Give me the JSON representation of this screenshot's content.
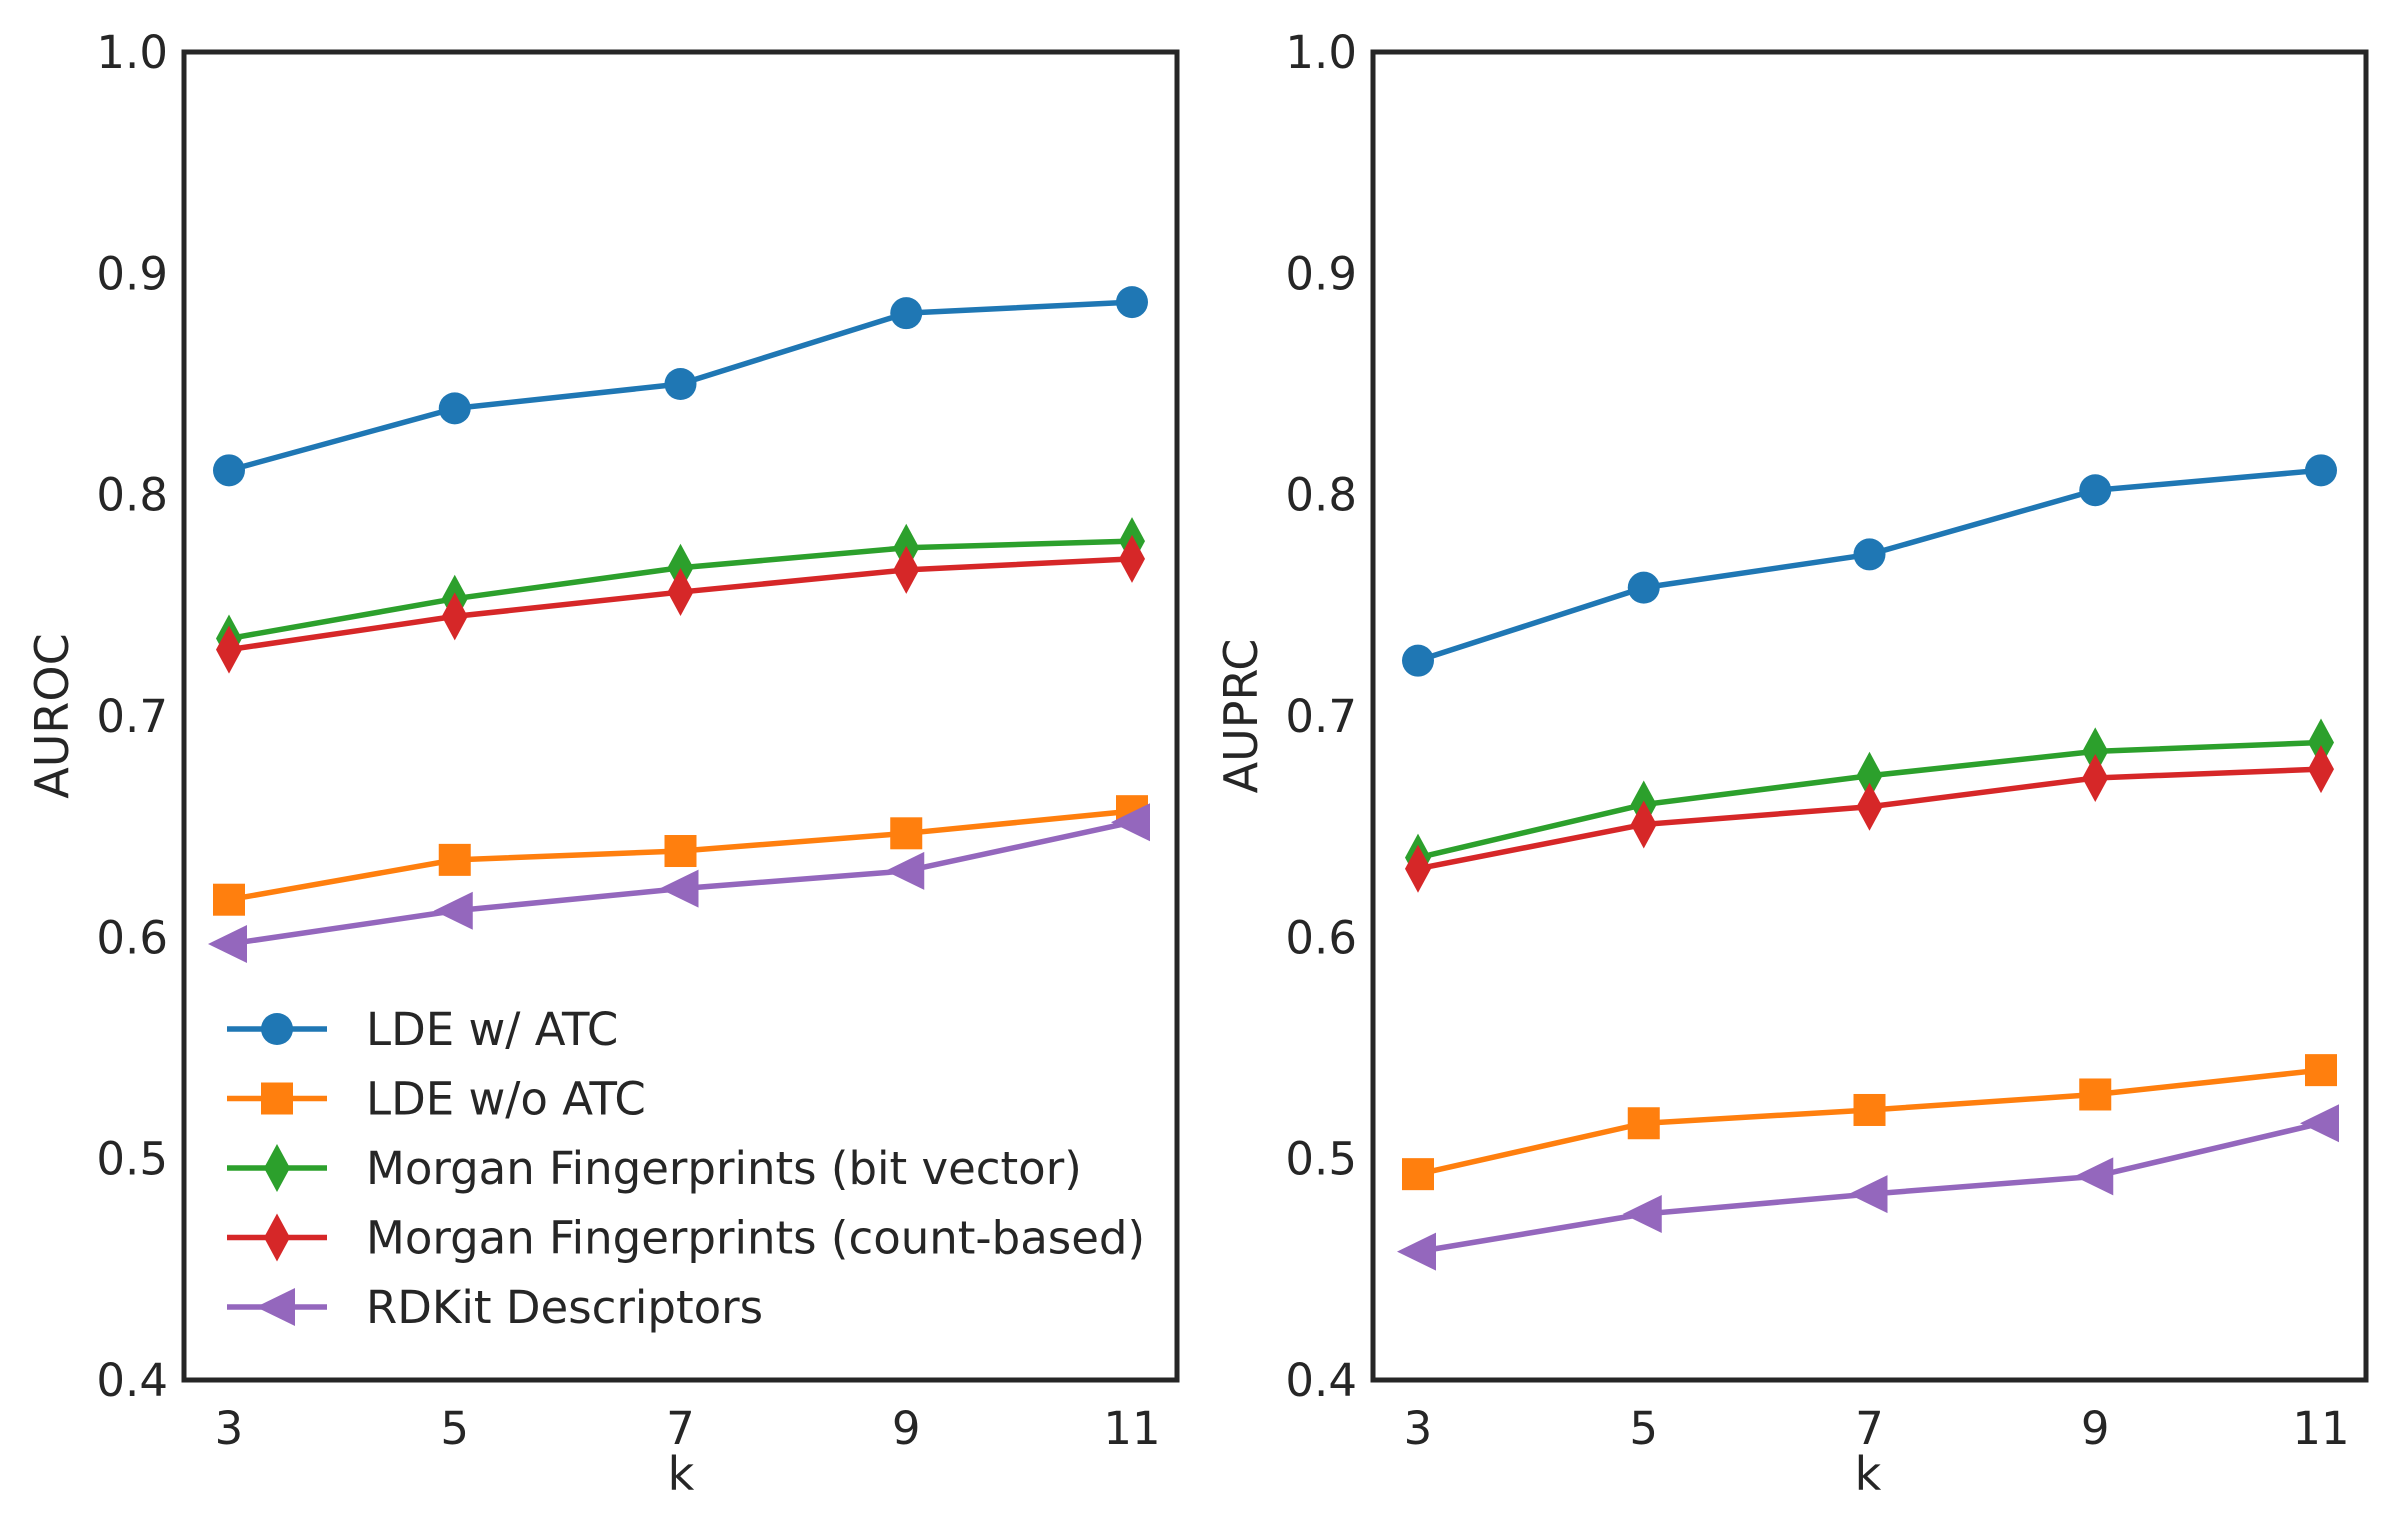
{
  "chart_data": [
    {
      "type": "line",
      "title": "",
      "xlabel": "k",
      "ylabel": "AUROC",
      "x": [
        3,
        5,
        7,
        9,
        11
      ],
      "xticks": [
        "3",
        "5",
        "7",
        "9",
        "11"
      ],
      "ylim": [
        0.4,
        1.0
      ],
      "yticks": [
        "0.4",
        "0.5",
        "0.6",
        "0.7",
        "0.8",
        "0.9",
        "1.0"
      ],
      "grid": false,
      "legend": "lower-left",
      "series": [
        {
          "name": "LDE w/ ATC",
          "marker": "circle",
          "color": "#1f77b4",
          "values": [
            0.811,
            0.839,
            0.85,
            0.882,
            0.887
          ]
        },
        {
          "name": "LDE w/o ATC",
          "marker": "square",
          "color": "#ff7f0e",
          "values": [
            0.617,
            0.635,
            0.639,
            0.647,
            0.657
          ]
        },
        {
          "name": "Morgan Fingerprints (bit vector)",
          "marker": "thin-diamond",
          "color": "#2ca02c",
          "values": [
            0.735,
            0.753,
            0.767,
            0.776,
            0.779
          ]
        },
        {
          "name": "Morgan Fingerprints (count-based)",
          "marker": "thin-diamond",
          "color": "#d62728",
          "values": [
            0.73,
            0.745,
            0.756,
            0.766,
            0.771
          ]
        },
        {
          "name": "RDKit Descriptors",
          "marker": "triangle-left",
          "color": "#9467bd",
          "values": [
            0.597,
            0.612,
            0.622,
            0.63,
            0.652
          ]
        }
      ]
    },
    {
      "type": "line",
      "title": "",
      "xlabel": "k",
      "ylabel": "AUPRC",
      "x": [
        3,
        5,
        7,
        9,
        11
      ],
      "xticks": [
        "3",
        "5",
        "7",
        "9",
        "11"
      ],
      "ylim": [
        0.4,
        1.0
      ],
      "yticks": [
        "0.4",
        "0.5",
        "0.6",
        "0.7",
        "0.8",
        "0.9",
        "1.0"
      ],
      "grid": false,
      "legend": "none",
      "series": [
        {
          "name": "LDE w/ ATC",
          "marker": "circle",
          "color": "#1f77b4",
          "values": [
            0.725,
            0.758,
            0.773,
            0.802,
            0.811
          ]
        },
        {
          "name": "LDE w/o ATC",
          "marker": "square",
          "color": "#ff7f0e",
          "values": [
            0.493,
            0.516,
            0.522,
            0.529,
            0.54
          ]
        },
        {
          "name": "Morgan Fingerprints (bit vector)",
          "marker": "thin-diamond",
          "color": "#2ca02c",
          "values": [
            0.636,
            0.66,
            0.673,
            0.684,
            0.688
          ]
        },
        {
          "name": "Morgan Fingerprints (count-based)",
          "marker": "thin-diamond",
          "color": "#d62728",
          "values": [
            0.631,
            0.651,
            0.659,
            0.672,
            0.676
          ]
        },
        {
          "name": "RDKit Descriptors",
          "marker": "triangle-left",
          "color": "#9467bd",
          "values": [
            0.458,
            0.475,
            0.484,
            0.492,
            0.516
          ]
        }
      ]
    }
  ]
}
